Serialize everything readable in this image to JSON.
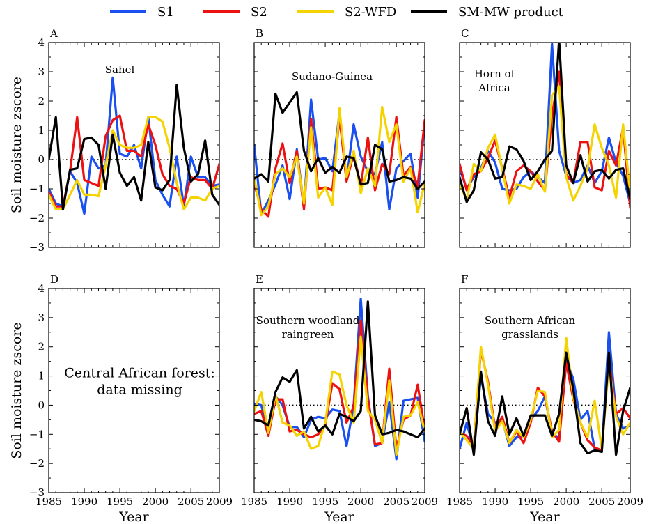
{
  "legend": [
    {
      "name": "S1",
      "color": "#1a4ff0"
    },
    {
      "name": "S2",
      "color": "#ee1111"
    },
    {
      "name": "S2-WFD",
      "color": "#f5d300"
    },
    {
      "name": "SM-MW product",
      "color": "#000000"
    }
  ],
  "chart_data": {
    "type": "line",
    "xlabel": "Year",
    "ylabel": "Soil moisture zscore",
    "xlim": [
      1985,
      2009
    ],
    "ylim": [
      -3,
      4
    ],
    "xticks": [
      1985,
      1990,
      1995,
      2000,
      2005,
      2009
    ],
    "yticks": [
      -3,
      -2,
      -1,
      0,
      1,
      2,
      3,
      4
    ],
    "zero_line": "dotted",
    "years": [
      1985,
      1986,
      1987,
      1988,
      1989,
      1990,
      1991,
      1992,
      1993,
      1994,
      1995,
      1996,
      1997,
      1998,
      1999,
      2000,
      2001,
      2002,
      2003,
      2004,
      2005,
      2006,
      2007,
      2008,
      2009
    ],
    "panels": [
      {
        "letter": "A",
        "annotation": [
          "Sahel"
        ],
        "missing_text": [],
        "series": [
          {
            "name": "S1",
            "values": [
              -1.0,
              -1.5,
              -1.6,
              -0.4,
              -0.8,
              -1.85,
              0.1,
              -0.3,
              -0.2,
              2.8,
              0.2,
              0.1,
              0.5,
              -0.3,
              1.45,
              -0.7,
              -1.2,
              -1.6,
              0.1,
              -1.6,
              0.1,
              -0.6,
              -0.6,
              -0.9,
              -0.85
            ]
          },
          {
            "name": "S2",
            "values": [
              -1.1,
              -1.6,
              -1.6,
              -0.4,
              1.45,
              -0.7,
              -0.8,
              -0.9,
              0.8,
              1.35,
              1.5,
              0.3,
              0.3,
              0.1,
              1.2,
              0.5,
              -0.5,
              -0.9,
              -1.0,
              -1.5,
              -0.6,
              -0.7,
              -0.7,
              -1.0,
              -0.15
            ]
          },
          {
            "name": "S2-WFD",
            "values": [
              -1.2,
              -1.7,
              -1.7,
              -1.2,
              -0.7,
              -1.2,
              -1.2,
              -1.25,
              -0.2,
              1.0,
              0.5,
              0.4,
              0.4,
              0.5,
              1.45,
              1.45,
              1.3,
              0.4,
              -0.8,
              -1.7,
              -1.3,
              -1.3,
              -1.4,
              -1.0,
              -0.9
            ]
          },
          {
            "name": "SM-MW product",
            "values": [
              0.0,
              1.45,
              -1.7,
              -0.35,
              -0.3,
              0.7,
              0.75,
              0.5,
              -1.0,
              0.85,
              -0.45,
              -0.9,
              -0.6,
              -1.4,
              0.6,
              -0.95,
              -1.05,
              -0.7,
              2.55,
              0.4,
              -0.75,
              -0.5,
              0.65,
              -1.2,
              -1.55
            ]
          }
        ]
      },
      {
        "letter": "B",
        "annotation": [
          "Sudano-Guinea"
        ],
        "missing_text": [],
        "series": [
          {
            "name": "S1",
            "values": [
              0.5,
              -1.85,
              -1.4,
              -0.85,
              -0.2,
              -1.35,
              0.35,
              -1.6,
              2.05,
              0.0,
              0.05,
              -0.4,
              1.6,
              -0.7,
              1.2,
              0.1,
              -0.4,
              -0.5,
              0.6,
              -1.7,
              -0.3,
              -0.05,
              0.2,
              -1.3,
              1.3
            ]
          },
          {
            "name": "S2",
            "values": [
              -0.8,
              -1.7,
              -1.95,
              -0.3,
              0.55,
              -0.8,
              0.3,
              -1.7,
              1.4,
              -1.0,
              -0.95,
              -1.05,
              1.45,
              -0.75,
              0.2,
              -0.9,
              0.75,
              -1.05,
              -0.15,
              -0.5,
              1.45,
              -0.55,
              -0.25,
              -0.9,
              1.35
            ]
          },
          {
            "name": "S2-WFD",
            "values": [
              -0.6,
              -1.9,
              -1.6,
              -0.5,
              -0.3,
              -0.6,
              0.1,
              -1.5,
              1.1,
              -1.3,
              -0.95,
              -1.55,
              1.75,
              -0.6,
              0.3,
              -1.15,
              -0.3,
              -0.9,
              1.8,
              0.6,
              1.2,
              -0.75,
              -0.3,
              -1.8,
              -0.8
            ]
          },
          {
            "name": "SM-MW product",
            "values": [
              -0.65,
              -0.5,
              -0.75,
              2.25,
              1.6,
              1.95,
              2.3,
              0.3,
              -0.4,
              0.05,
              -0.45,
              -0.25,
              -0.45,
              0.1,
              0.05,
              -0.85,
              -0.8,
              0.5,
              0.35,
              -0.75,
              -0.7,
              -0.6,
              -0.65,
              -1.0,
              -0.75
            ]
          }
        ]
      },
      {
        "letter": "C",
        "annotation": [
          "Horn of",
          "Africa"
        ],
        "missing_text": [],
        "series": [
          {
            "name": "S1",
            "values": [
              -0.3,
              -1.0,
              -0.6,
              -0.3,
              0.3,
              -0.1,
              -1.0,
              -1.05,
              -1.0,
              -0.6,
              -0.4,
              -0.6,
              -0.8,
              3.95,
              0.3,
              -0.55,
              -0.8,
              -0.7,
              -0.2,
              -0.8,
              -0.4,
              0.75,
              -0.1,
              -0.55,
              -1.5
            ]
          },
          {
            "name": "S2",
            "values": [
              -0.15,
              -1.05,
              -0.5,
              -0.4,
              0.05,
              0.65,
              -0.3,
              -1.3,
              -0.4,
              -0.2,
              -0.4,
              -0.75,
              -1.05,
              1.5,
              3.0,
              -0.5,
              -0.8,
              0.6,
              0.6,
              -0.95,
              -1.05,
              0.3,
              -0.2,
              1.1,
              -1.65
            ]
          },
          {
            "name": "S2-WFD",
            "values": [
              -0.8,
              -1.4,
              -0.15,
              -0.4,
              0.4,
              0.85,
              -0.35,
              -1.5,
              -0.85,
              -0.9,
              -1.0,
              -0.5,
              -1.1,
              2.2,
              2.5,
              -0.6,
              -1.4,
              -0.9,
              -0.3,
              1.2,
              0.4,
              -0.2,
              -1.3,
              1.2,
              -1.15
            ]
          },
          {
            "name": "SM-MW product",
            "values": [
              -0.6,
              -1.45,
              -1.05,
              0.25,
              0.0,
              -0.65,
              -0.6,
              0.45,
              0.35,
              -0.05,
              -0.7,
              -0.4,
              0.0,
              0.3,
              4.1,
              -0.2,
              -0.8,
              0.15,
              -0.75,
              -0.4,
              -0.35,
              -0.65,
              -0.35,
              -0.3,
              -1.35
            ]
          }
        ]
      },
      {
        "letter": "D",
        "annotation": [],
        "missing_text": [
          "Central African forest:",
          "data missing"
        ],
        "series": []
      },
      {
        "letter": "E",
        "annotation": [
          "Southern woodland",
          "raingreen"
        ],
        "missing_text": [],
        "series": [
          {
            "name": "S1",
            "values": [
              0.05,
              0.0,
              -0.9,
              0.3,
              0.0,
              -0.75,
              -0.75,
              -1.1,
              -0.5,
              -0.4,
              -0.45,
              -0.15,
              -0.2,
              -1.4,
              0.0,
              3.65,
              0.3,
              -1.4,
              -1.3,
              0.1,
              -1.85,
              0.15,
              0.2,
              0.25,
              -1.25
            ]
          },
          {
            "name": "S2",
            "values": [
              -0.3,
              -0.2,
              -1.05,
              0.2,
              0.2,
              -0.9,
              -0.85,
              -1.0,
              -1.1,
              -1.0,
              -0.7,
              0.75,
              0.55,
              -0.6,
              -0.05,
              2.9,
              0.2,
              -1.35,
              -1.3,
              1.25,
              -1.5,
              -0.5,
              -0.35,
              0.7,
              -0.85
            ]
          },
          {
            "name": "S2-WFD",
            "values": [
              -0.2,
              0.45,
              -0.95,
              0.35,
              -0.6,
              -0.7,
              -1.05,
              -0.9,
              -1.5,
              -1.4,
              -0.6,
              1.15,
              1.05,
              0.0,
              -0.6,
              2.35,
              -0.2,
              -0.5,
              -1.3,
              0.85,
              -1.7,
              -0.4,
              -0.35,
              0.1,
              -0.9
            ]
          },
          {
            "name": "SM-MW product",
            "values": [
              -0.5,
              -0.55,
              -0.7,
              0.45,
              0.95,
              0.8,
              1.2,
              -0.8,
              -0.4,
              -0.9,
              -0.7,
              -1.0,
              -0.3,
              -0.4,
              -0.55,
              -0.2,
              3.55,
              -0.35,
              -1.0,
              -0.95,
              -0.85,
              -0.9,
              -1.0,
              -1.1,
              -0.8
            ]
          }
        ]
      },
      {
        "letter": "F",
        "annotation": [
          "Southern African",
          "grasslands"
        ],
        "missing_text": [],
        "series": [
          {
            "name": "S1",
            "values": [
              -1.5,
              -0.6,
              -1.55,
              1.0,
              -0.3,
              -0.6,
              -0.5,
              -1.4,
              -1.1,
              -1.1,
              -0.5,
              -0.2,
              0.3,
              -1.0,
              -1.1,
              1.55,
              0.9,
              -0.5,
              -0.2,
              -1.5,
              -1.6,
              2.5,
              -0.3,
              -0.8,
              -0.7
            ]
          },
          {
            "name": "S2",
            "values": [
              -0.95,
              -1.05,
              -1.4,
              1.9,
              0.8,
              -0.8,
              -0.4,
              -1.3,
              -0.9,
              -1.3,
              -0.6,
              0.6,
              0.3,
              -0.9,
              -1.25,
              1.45,
              0.2,
              -0.6,
              -1.2,
              -1.45,
              -1.55,
              1.6,
              -0.3,
              -0.1,
              -0.45
            ]
          },
          {
            "name": "S2-WFD",
            "values": [
              -0.9,
              -1.2,
              -1.5,
              2.0,
              0.7,
              -0.9,
              -0.55,
              -1.3,
              -0.85,
              -1.1,
              -0.5,
              0.5,
              0.45,
              -1.1,
              -0.85,
              2.3,
              0.25,
              -0.6,
              -1.1,
              0.15,
              -1.5,
              1.4,
              -0.4,
              -1.0,
              -0.6
            ]
          },
          {
            "name": "SM-MW product",
            "values": [
              -1.0,
              -0.1,
              -1.7,
              1.15,
              -0.55,
              -1.05,
              0.3,
              -1.0,
              -0.45,
              -1.05,
              -0.35,
              -0.35,
              -0.35,
              -1.05,
              -0.3,
              1.8,
              0.55,
              -1.3,
              -1.65,
              -1.55,
              -1.6,
              1.8,
              -1.7,
              -0.2,
              0.6
            ]
          }
        ]
      }
    ]
  }
}
